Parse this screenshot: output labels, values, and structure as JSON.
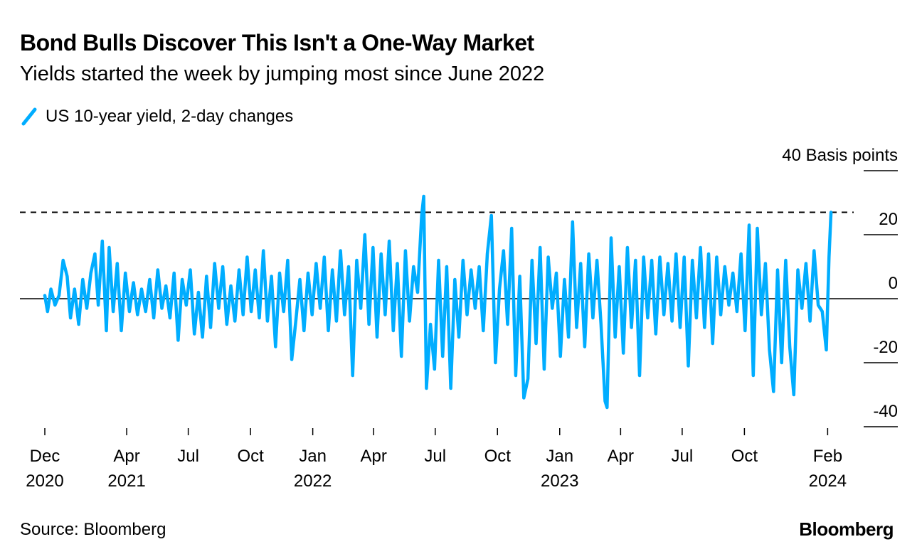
{
  "header": {
    "title": "Bond Bulls Discover This Isn't a One-Way Market",
    "subtitle": "Yields started the week by jumping most since June 2022"
  },
  "legend": {
    "label": "US 10-year yield, 2-day changes",
    "color": "#00adff"
  },
  "footer": {
    "source": "Source: Bloomberg",
    "brand": "Bloomberg"
  },
  "chart_data": {
    "type": "line",
    "title": "Bond Bulls Discover This Isn't a One-Way Market",
    "subtitle": "Yields started the week by jumping most since June 2022",
    "ylabel": "40 Basis points",
    "ylim": [
      -40,
      40
    ],
    "yticks": [
      {
        "value": 40,
        "label": "40 Basis points"
      },
      {
        "value": 20,
        "label": "20"
      },
      {
        "value": 0,
        "label": "0"
      },
      {
        "value": -20,
        "label": "-20"
      },
      {
        "value": -40,
        "label": "-40"
      }
    ],
    "xlim": [
      "2020-12-01",
      "2024-02-29"
    ],
    "xticks": [
      {
        "date": "2020-12-01",
        "label": "Dec",
        "year": "2020"
      },
      {
        "date": "2021-04-01",
        "label": "Apr",
        "year": "2021"
      },
      {
        "date": "2021-07-01",
        "label": "Jul",
        "year": ""
      },
      {
        "date": "2021-10-01",
        "label": "Oct",
        "year": ""
      },
      {
        "date": "2022-01-01",
        "label": "Jan",
        "year": "2022"
      },
      {
        "date": "2022-04-01",
        "label": "Apr",
        "year": ""
      },
      {
        "date": "2022-07-01",
        "label": "Jul",
        "year": ""
      },
      {
        "date": "2022-10-01",
        "label": "Oct",
        "year": ""
      },
      {
        "date": "2023-01-01",
        "label": "Jan",
        "year": "2023"
      },
      {
        "date": "2023-04-01",
        "label": "Apr",
        "year": ""
      },
      {
        "date": "2023-07-01",
        "label": "Jul",
        "year": ""
      },
      {
        "date": "2023-10-01",
        "label": "Oct",
        "year": ""
      },
      {
        "date": "2024-02-01",
        "label": "Feb",
        "year": "2024"
      }
    ],
    "reference_line": {
      "value": 27,
      "style": "dashed",
      "color": "#000000"
    },
    "zero_line": true,
    "grid": false,
    "series": [
      {
        "name": "US 10-year yield, 2-day changes",
        "color": "#00adff",
        "points": [
          {
            "x": "2020-12-01",
            "y": 1
          },
          {
            "x": "2020-12-05",
            "y": -4
          },
          {
            "x": "2020-12-10",
            "y": 3
          },
          {
            "x": "2020-12-16",
            "y": -2
          },
          {
            "x": "2020-12-22",
            "y": 1
          },
          {
            "x": "2020-12-28",
            "y": 12
          },
          {
            "x": "2021-01-03",
            "y": 7
          },
          {
            "x": "2021-01-08",
            "y": -6
          },
          {
            "x": "2021-01-14",
            "y": 3
          },
          {
            "x": "2021-01-20",
            "y": -8
          },
          {
            "x": "2021-01-26",
            "y": 6
          },
          {
            "x": "2021-02-01",
            "y": -3
          },
          {
            "x": "2021-02-07",
            "y": 8
          },
          {
            "x": "2021-02-13",
            "y": 14
          },
          {
            "x": "2021-02-18",
            "y": -2
          },
          {
            "x": "2021-02-24",
            "y": 18
          },
          {
            "x": "2021-03-02",
            "y": -10
          },
          {
            "x": "2021-03-06",
            "y": 16
          },
          {
            "x": "2021-03-12",
            "y": -4
          },
          {
            "x": "2021-03-18",
            "y": 11
          },
          {
            "x": "2021-03-24",
            "y": -10
          },
          {
            "x": "2021-03-30",
            "y": 8
          },
          {
            "x": "2021-04-05",
            "y": -4
          },
          {
            "x": "2021-04-11",
            "y": 5
          },
          {
            "x": "2021-04-17",
            "y": -5
          },
          {
            "x": "2021-04-23",
            "y": 3
          },
          {
            "x": "2021-04-29",
            "y": -4
          },
          {
            "x": "2021-05-05",
            "y": 6
          },
          {
            "x": "2021-05-11",
            "y": -6
          },
          {
            "x": "2021-05-17",
            "y": 9
          },
          {
            "x": "2021-05-23",
            "y": -3
          },
          {
            "x": "2021-05-29",
            "y": 4
          },
          {
            "x": "2021-06-04",
            "y": -6
          },
          {
            "x": "2021-06-10",
            "y": 8
          },
          {
            "x": "2021-06-16",
            "y": -13
          },
          {
            "x": "2021-06-22",
            "y": 6
          },
          {
            "x": "2021-06-28",
            "y": -2
          },
          {
            "x": "2021-07-04",
            "y": 9
          },
          {
            "x": "2021-07-10",
            "y": -11
          },
          {
            "x": "2021-07-16",
            "y": 2
          },
          {
            "x": "2021-07-22",
            "y": -12
          },
          {
            "x": "2021-07-28",
            "y": 7
          },
          {
            "x": "2021-08-03",
            "y": -9
          },
          {
            "x": "2021-08-09",
            "y": 11
          },
          {
            "x": "2021-08-15",
            "y": -3
          },
          {
            "x": "2021-08-21",
            "y": 10
          },
          {
            "x": "2021-08-27",
            "y": -8
          },
          {
            "x": "2021-09-02",
            "y": 4
          },
          {
            "x": "2021-09-08",
            "y": -7
          },
          {
            "x": "2021-09-14",
            "y": 9
          },
          {
            "x": "2021-09-20",
            "y": -5
          },
          {
            "x": "2021-09-26",
            "y": 13
          },
          {
            "x": "2021-10-02",
            "y": -4
          },
          {
            "x": "2021-10-08",
            "y": 9
          },
          {
            "x": "2021-10-14",
            "y": -6
          },
          {
            "x": "2021-10-20",
            "y": 15
          },
          {
            "x": "2021-10-26",
            "y": -7
          },
          {
            "x": "2021-11-01",
            "y": 7
          },
          {
            "x": "2021-11-07",
            "y": -15
          },
          {
            "x": "2021-11-13",
            "y": 8
          },
          {
            "x": "2021-11-19",
            "y": -4
          },
          {
            "x": "2021-11-25",
            "y": 12
          },
          {
            "x": "2021-12-01",
            "y": -19
          },
          {
            "x": "2021-12-07",
            "y": -7
          },
          {
            "x": "2021-12-13",
            "y": 6
          },
          {
            "x": "2021-12-19",
            "y": -10
          },
          {
            "x": "2021-12-25",
            "y": 8
          },
          {
            "x": "2021-12-31",
            "y": -5
          },
          {
            "x": "2022-01-06",
            "y": 11
          },
          {
            "x": "2022-01-12",
            "y": -3
          },
          {
            "x": "2022-01-18",
            "y": 13
          },
          {
            "x": "2022-01-24",
            "y": -10
          },
          {
            "x": "2022-01-30",
            "y": 9
          },
          {
            "x": "2022-02-05",
            "y": -7
          },
          {
            "x": "2022-02-11",
            "y": 15
          },
          {
            "x": "2022-02-17",
            "y": -5
          },
          {
            "x": "2022-02-23",
            "y": 10
          },
          {
            "x": "2022-03-01",
            "y": -24
          },
          {
            "x": "2022-03-07",
            "y": 12
          },
          {
            "x": "2022-03-13",
            "y": -3
          },
          {
            "x": "2022-03-19",
            "y": 20
          },
          {
            "x": "2022-03-25",
            "y": -8
          },
          {
            "x": "2022-03-31",
            "y": 16
          },
          {
            "x": "2022-04-06",
            "y": -12
          },
          {
            "x": "2022-04-12",
            "y": 14
          },
          {
            "x": "2022-04-18",
            "y": -5
          },
          {
            "x": "2022-04-24",
            "y": 18
          },
          {
            "x": "2022-04-30",
            "y": -10
          },
          {
            "x": "2022-05-06",
            "y": 11
          },
          {
            "x": "2022-05-12",
            "y": -18
          },
          {
            "x": "2022-05-18",
            "y": 15
          },
          {
            "x": "2022-05-24",
            "y": -7
          },
          {
            "x": "2022-05-30",
            "y": 10
          },
          {
            "x": "2022-06-05",
            "y": 2
          },
          {
            "x": "2022-06-11",
            "y": 26
          },
          {
            "x": "2022-06-14",
            "y": 32
          },
          {
            "x": "2022-06-18",
            "y": -28
          },
          {
            "x": "2022-06-24",
            "y": -8
          },
          {
            "x": "2022-06-30",
            "y": -22
          },
          {
            "x": "2022-07-06",
            "y": 12
          },
          {
            "x": "2022-07-12",
            "y": -18
          },
          {
            "x": "2022-07-18",
            "y": 10
          },
          {
            "x": "2022-07-24",
            "y": -28
          },
          {
            "x": "2022-07-30",
            "y": 6
          },
          {
            "x": "2022-08-05",
            "y": -12
          },
          {
            "x": "2022-08-11",
            "y": 12
          },
          {
            "x": "2022-08-17",
            "y": -5
          },
          {
            "x": "2022-08-23",
            "y": 9
          },
          {
            "x": "2022-08-29",
            "y": -3
          },
          {
            "x": "2022-09-04",
            "y": 10
          },
          {
            "x": "2022-09-10",
            "y": -10
          },
          {
            "x": "2022-09-16",
            "y": 14
          },
          {
            "x": "2022-09-22",
            "y": 26
          },
          {
            "x": "2022-09-28",
            "y": -20
          },
          {
            "x": "2022-10-04",
            "y": 3
          },
          {
            "x": "2022-10-10",
            "y": 15
          },
          {
            "x": "2022-10-16",
            "y": -8
          },
          {
            "x": "2022-10-22",
            "y": 22
          },
          {
            "x": "2022-10-28",
            "y": -24
          },
          {
            "x": "2022-11-03",
            "y": 7
          },
          {
            "x": "2022-11-09",
            "y": -31
          },
          {
            "x": "2022-11-15",
            "y": -25
          },
          {
            "x": "2022-11-21",
            "y": 12
          },
          {
            "x": "2022-11-27",
            "y": -14
          },
          {
            "x": "2022-12-03",
            "y": 16
          },
          {
            "x": "2022-12-09",
            "y": -22
          },
          {
            "x": "2022-12-15",
            "y": 13
          },
          {
            "x": "2022-12-21",
            "y": -3
          },
          {
            "x": "2022-12-27",
            "y": 8
          },
          {
            "x": "2023-01-02",
            "y": -18
          },
          {
            "x": "2023-01-08",
            "y": 6
          },
          {
            "x": "2023-01-14",
            "y": -12
          },
          {
            "x": "2023-01-20",
            "y": 24
          },
          {
            "x": "2023-01-26",
            "y": -9
          },
          {
            "x": "2023-02-01",
            "y": 11
          },
          {
            "x": "2023-02-07",
            "y": -15
          },
          {
            "x": "2023-02-13",
            "y": 14
          },
          {
            "x": "2023-02-19",
            "y": -6
          },
          {
            "x": "2023-02-25",
            "y": 12
          },
          {
            "x": "2023-03-03",
            "y": -8
          },
          {
            "x": "2023-03-09",
            "y": -32
          },
          {
            "x": "2023-03-12",
            "y": -34
          },
          {
            "x": "2023-03-18",
            "y": 19
          },
          {
            "x": "2023-03-24",
            "y": -12
          },
          {
            "x": "2023-03-30",
            "y": 10
          },
          {
            "x": "2023-04-05",
            "y": -17
          },
          {
            "x": "2023-04-11",
            "y": 16
          },
          {
            "x": "2023-04-17",
            "y": -9
          },
          {
            "x": "2023-04-23",
            "y": 12
          },
          {
            "x": "2023-04-29",
            "y": -24
          },
          {
            "x": "2023-05-05",
            "y": 13
          },
          {
            "x": "2023-05-11",
            "y": -6
          },
          {
            "x": "2023-05-17",
            "y": 12
          },
          {
            "x": "2023-05-23",
            "y": -11
          },
          {
            "x": "2023-05-29",
            "y": 13
          },
          {
            "x": "2023-06-04",
            "y": -5
          },
          {
            "x": "2023-06-10",
            "y": 11
          },
          {
            "x": "2023-06-16",
            "y": -7
          },
          {
            "x": "2023-06-22",
            "y": 14
          },
          {
            "x": "2023-06-28",
            "y": -9
          },
          {
            "x": "2023-07-04",
            "y": 13
          },
          {
            "x": "2023-07-10",
            "y": -21
          },
          {
            "x": "2023-07-16",
            "y": 12
          },
          {
            "x": "2023-07-22",
            "y": -6
          },
          {
            "x": "2023-07-28",
            "y": 16
          },
          {
            "x": "2023-08-03",
            "y": -9
          },
          {
            "x": "2023-08-09",
            "y": 14
          },
          {
            "x": "2023-08-15",
            "y": -14
          },
          {
            "x": "2023-08-21",
            "y": 13
          },
          {
            "x": "2023-08-27",
            "y": -5
          },
          {
            "x": "2023-09-02",
            "y": 10
          },
          {
            "x": "2023-09-08",
            "y": -2
          },
          {
            "x": "2023-09-14",
            "y": 8
          },
          {
            "x": "2023-09-20",
            "y": -4
          },
          {
            "x": "2023-09-26",
            "y": 14
          },
          {
            "x": "2023-10-02",
            "y": -10
          },
          {
            "x": "2023-10-08",
            "y": 23
          },
          {
            "x": "2023-10-14",
            "y": -24
          },
          {
            "x": "2023-10-20",
            "y": 22
          },
          {
            "x": "2023-10-26",
            "y": -5
          },
          {
            "x": "2023-11-01",
            "y": 11
          },
          {
            "x": "2023-11-07",
            "y": -16
          },
          {
            "x": "2023-11-13",
            "y": -29
          },
          {
            "x": "2023-11-19",
            "y": 9
          },
          {
            "x": "2023-11-25",
            "y": -20
          },
          {
            "x": "2023-12-01",
            "y": 12
          },
          {
            "x": "2023-12-07",
            "y": -15
          },
          {
            "x": "2023-12-13",
            "y": -30
          },
          {
            "x": "2023-12-19",
            "y": 9
          },
          {
            "x": "2023-12-25",
            "y": -3
          },
          {
            "x": "2023-12-31",
            "y": 11
          },
          {
            "x": "2024-01-06",
            "y": -7
          },
          {
            "x": "2024-01-12",
            "y": 15
          },
          {
            "x": "2024-01-18",
            "y": -2
          },
          {
            "x": "2024-01-24",
            "y": -4
          },
          {
            "x": "2024-01-30",
            "y": -16
          },
          {
            "x": "2024-02-03",
            "y": 13
          },
          {
            "x": "2024-02-06",
            "y": 27
          }
        ]
      }
    ]
  }
}
